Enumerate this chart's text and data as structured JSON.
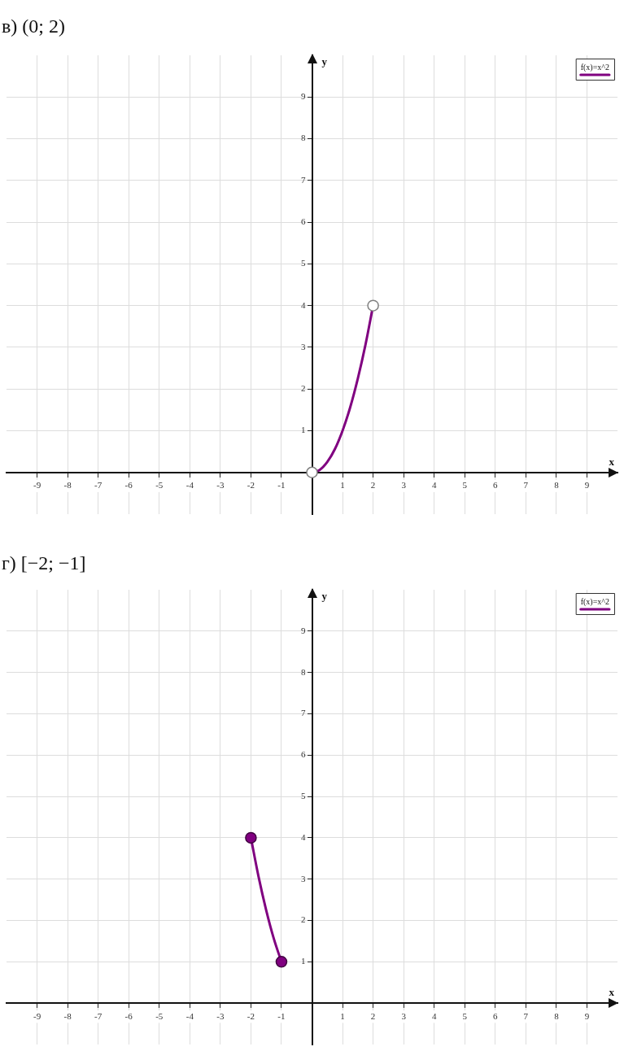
{
  "chart_data": [
    {
      "type": "line",
      "title": "в) (0; 2)",
      "xlabel": "x",
      "ylabel": "y",
      "xlim": [
        -10,
        10
      ],
      "ylim": [
        -1,
        10
      ],
      "xticks": [
        -9,
        -8,
        -7,
        -6,
        -5,
        -4,
        -3,
        -2,
        -1,
        1,
        2,
        3,
        4,
        5,
        6,
        7,
        8,
        9
      ],
      "yticks": [
        1,
        2,
        3,
        4,
        5,
        6,
        7,
        8,
        9
      ],
      "grid": true,
      "legend": "top right",
      "series": [
        {
          "name": "f(x)=x^2",
          "type": "line",
          "marker": "none",
          "color": "#800080",
          "x": [
            0,
            0.25,
            0.5,
            0.75,
            1,
            1.25,
            1.5,
            1.75,
            2
          ],
          "values": [
            0,
            0.06,
            0.25,
            0.56,
            1,
            1.56,
            2.25,
            3.06,
            4
          ]
        },
        {
          "type": "scatter",
          "marker": "circle",
          "color": "#ffffff",
          "x": [
            0,
            2
          ],
          "values": [
            0,
            4
          ]
        }
      ]
    },
    {
      "type": "line",
      "title": "г) [−2; −1]",
      "xlabel": "x",
      "ylabel": "y",
      "xlim": [
        -10,
        10
      ],
      "ylim": [
        -1,
        10
      ],
      "xticks": [
        -9,
        -8,
        -7,
        -6,
        -5,
        -4,
        -3,
        -2,
        -1,
        1,
        2,
        3,
        4,
        5,
        6,
        7,
        8,
        9
      ],
      "yticks": [
        1,
        2,
        3,
        4,
        5,
        6,
        7,
        8,
        9
      ],
      "grid": true,
      "legend": "top right",
      "series": [
        {
          "name": "f(x)=x^2",
          "type": "line",
          "marker": "none",
          "color": "#800080",
          "x": [
            -2,
            -1.75,
            -1.5,
            -1.25,
            -1
          ],
          "values": [
            4,
            3.06,
            2.25,
            1.56,
            1
          ]
        },
        {
          "type": "scatter",
          "marker": "circle",
          "color": "#800080",
          "x": [
            -2,
            -1
          ],
          "values": [
            4,
            1
          ]
        }
      ]
    }
  ]
}
